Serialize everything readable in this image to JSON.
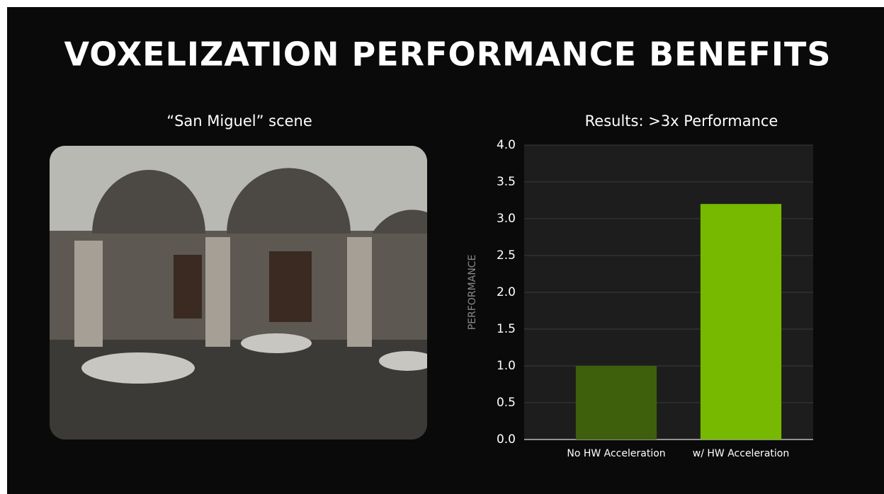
{
  "title": "VOXELIZATION PERFORMANCE BENEFITS",
  "image_caption": "“San Miguel” scene",
  "chart_data": {
    "type": "bar",
    "title": "Results: >3x Performance",
    "y_label": "PERFORMANCE",
    "categories": [
      "No HW Acceleration",
      "w/ HW Acceleration"
    ],
    "values": [
      1.0,
      3.2
    ],
    "colors": [
      "#3e5f0b",
      "#76b900"
    ],
    "ylim": [
      0,
      4
    ],
    "yticks": [
      {
        "value": 0,
        "label": "0.0"
      },
      {
        "value": 0.5,
        "label": "0.5"
      },
      {
        "value": 1,
        "label": "1.0"
      },
      {
        "value": 1.5,
        "label": "1.5"
      },
      {
        "value": 2,
        "label": "2.0"
      },
      {
        "value": 2.5,
        "label": "2.5"
      },
      {
        "value": 3,
        "label": "3.0"
      },
      {
        "value": 3.5,
        "label": "3.5"
      },
      {
        "value": 4,
        "label": "4.0"
      }
    ],
    "grid": true
  }
}
